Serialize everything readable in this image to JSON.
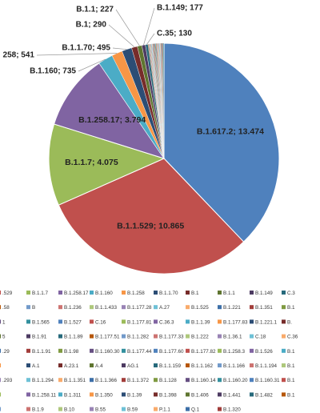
{
  "chart_data": {
    "type": "pie",
    "title": "",
    "labels": [
      "B.1.617.2",
      "B.1.1.529",
      "B.1.1.7",
      "B.1.258.17",
      "B.1.160",
      "B.1.258",
      "B.1.1.70",
      "B.1",
      "B.1.1",
      "B.1.149",
      "C.35"
    ],
    "values": [
      13474,
      10865,
      4075,
      3794,
      735,
      541,
      495,
      290,
      227,
      177,
      130
    ],
    "slice_colors": [
      "#4f81bd",
      "#c0504d",
      "#9bbb59",
      "#8064a2",
      "#4bacc6",
      "#f79646",
      "#2c4d75",
      "#772c2a",
      "#5f7530",
      "#4d3b62",
      "#276a7c"
    ],
    "data_labels": [
      "B.1.617.2; 13.474",
      "B.1.1.529; 10.865",
      "B.1.1.7; 4.075",
      "B.1.258.17; 3.794",
      "B.1.160; 735",
      "258; 541",
      "B.1.1.70; 495",
      "B.1; 290",
      "B.1.1; 227",
      "B.1.149; 177",
      "C.35; 130"
    ],
    "minor_slice_colors": [
      "#b65708",
      "#729aca",
      "#cd7371",
      "#aec87c",
      "#9983b5",
      "#6ec1d6",
      "#f9ab6b",
      "#3d6fa8",
      "#a23d3a",
      "#7f9a41",
      "#664f82",
      "#33909e"
    ],
    "legend_placement": "bottom",
    "legend_rows": [
      [
        {
          "label": ".529",
          "color": "#c0504d"
        },
        {
          "label": "B.1.1.7",
          "color": "#9bbb59"
        },
        {
          "label": "B.1.258.17",
          "color": "#8064a2"
        },
        {
          "label": "B.1.160",
          "color": "#4bacc6"
        },
        {
          "label": "B.1.258",
          "color": "#f79646"
        },
        {
          "label": "B.1.1.70",
          "color": "#2c4d75"
        },
        {
          "label": "B.1",
          "color": "#772c2a"
        },
        {
          "label": "B.1.1",
          "color": "#5f7530"
        },
        {
          "label": "B.1.149",
          "color": "#4d3b62"
        },
        {
          "label": "C.3",
          "color": "#276a7c"
        }
      ],
      [
        {
          "label": ".58",
          "color": "#b65708"
        },
        {
          "label": "B",
          "color": "#729aca"
        },
        {
          "label": "B.1.236",
          "color": "#cd7371"
        },
        {
          "label": "B.1.1.433",
          "color": "#aec87c"
        },
        {
          "label": "B.1.177.28",
          "color": "#9983b5"
        },
        {
          "label": "A.27",
          "color": "#6ec1d6"
        },
        {
          "label": "B.1.525",
          "color": "#f9ab6b"
        },
        {
          "label": "B.1.221",
          "color": "#3d6fa8"
        },
        {
          "label": "B.1.351",
          "color": "#a23d3a"
        },
        {
          "label": "B.1",
          "color": "#7f9a41"
        }
      ],
      [
        {
          "label": "1",
          "color": "#664f82"
        },
        {
          "label": "B.1.565",
          "color": "#33909e"
        },
        {
          "label": "B.1.527",
          "color": "#4f81bd"
        },
        {
          "label": "C.16",
          "color": "#c0504d"
        },
        {
          "label": "B.1.177.81",
          "color": "#9bbb59"
        },
        {
          "label": "C.36.3",
          "color": "#8064a2"
        },
        {
          "label": "B.1.1.39",
          "color": "#4bacc6"
        },
        {
          "label": "B.1.177.83",
          "color": "#f79646"
        },
        {
          "label": "B.1.221.1",
          "color": "#2c4d75"
        },
        {
          "label": "B.",
          "color": "#772c2a"
        }
      ],
      [
        {
          "label": "5",
          "color": "#5f7530"
        },
        {
          "label": "B.1.91",
          "color": "#4d3b62"
        },
        {
          "label": "B.1.1.89",
          "color": "#276a7c"
        },
        {
          "label": "B.1.177.51",
          "color": "#b65708"
        },
        {
          "label": "B.1.1.282",
          "color": "#729aca"
        },
        {
          "label": "B.1.177.33",
          "color": "#cd7371"
        },
        {
          "label": "B.1.222",
          "color": "#aec87c"
        },
        {
          "label": "B.1.36.1",
          "color": "#9983b5"
        },
        {
          "label": "C.18",
          "color": "#6ec1d6"
        },
        {
          "label": "C.36",
          "color": "#f9ab6b"
        }
      ],
      [
        {
          "label": ".29",
          "color": "#3d6fa8"
        },
        {
          "label": "B.1.1.91",
          "color": "#a23d3a"
        },
        {
          "label": "B.1.98",
          "color": "#7f9a41"
        },
        {
          "label": "B.1.160.30",
          "color": "#664f82"
        },
        {
          "label": "B.1.177.44",
          "color": "#33909e"
        },
        {
          "label": "B.1.177.60",
          "color": "#4f81bd"
        },
        {
          "label": "B.1.177.82",
          "color": "#c0504d"
        },
        {
          "label": "B.1.258.3",
          "color": "#9bbb59"
        },
        {
          "label": "B.1.526",
          "color": "#8064a2"
        },
        {
          "label": "B.1",
          "color": "#4bacc6"
        }
      ],
      [
        {
          "label": "",
          "color": "#f79646"
        },
        {
          "label": "A.1",
          "color": "#2c4d75"
        },
        {
          "label": "A.23.1",
          "color": "#772c2a"
        },
        {
          "label": "A.4",
          "color": "#5f7530"
        },
        {
          "label": "AG.1",
          "color": "#4d3b62"
        },
        {
          "label": "B.1.1.159",
          "color": "#276a7c"
        },
        {
          "label": "B.1.1.162",
          "color": "#b65708"
        },
        {
          "label": "B.1.1.166",
          "color": "#729aca"
        },
        {
          "label": "B.1.1.194",
          "color": "#cd7371"
        },
        {
          "label": "B.1",
          "color": "#aec87c"
        }
      ],
      [
        {
          "label": ".293",
          "color": "#9983b5"
        },
        {
          "label": "B.1.1.294",
          "color": "#6ec1d6"
        },
        {
          "label": "B.1.1.351",
          "color": "#f9ab6b"
        },
        {
          "label": "B.1.1.366",
          "color": "#3d6fa8"
        },
        {
          "label": "B.1.1.372",
          "color": "#a23d3a"
        },
        {
          "label": "B.1.128",
          "color": "#7f9a41"
        },
        {
          "label": "B.1.160.14",
          "color": "#664f82"
        },
        {
          "label": "B.1.160.20",
          "color": "#33909e"
        },
        {
          "label": "B.1.160.31",
          "color": "#4f81bd"
        },
        {
          "label": "B.1",
          "color": "#c0504d"
        }
      ],
      [
        {
          "label": "",
          "color": "#9bbb59"
        },
        {
          "label": "B.1.258.11",
          "color": "#8064a2"
        },
        {
          "label": "B.1.311",
          "color": "#4bacc6"
        },
        {
          "label": "B.1.350",
          "color": "#f79646"
        },
        {
          "label": "B.1.39",
          "color": "#2c4d75"
        },
        {
          "label": "B.1.398",
          "color": "#772c2a"
        },
        {
          "label": "B.1.406",
          "color": "#5f7530"
        },
        {
          "label": "B.1.441",
          "color": "#4d3b62"
        },
        {
          "label": "B.1.482",
          "color": "#276a7c"
        },
        {
          "label": "B.1",
          "color": "#b65708"
        }
      ],
      [
        {
          "label": "",
          "color": "#729aca"
        },
        {
          "label": "B.1.9",
          "color": "#cd7371"
        },
        {
          "label": "B.10",
          "color": "#aec87c"
        },
        {
          "label": "B.55",
          "color": "#9983b5"
        },
        {
          "label": "B.59",
          "color": "#6ec1d6"
        },
        {
          "label": "P.1.1",
          "color": "#f9ab6b"
        },
        {
          "label": "Q.1",
          "color": "#3d6fa8"
        },
        {
          "label": "B.1.320",
          "color": "#a23d3a"
        }
      ]
    ]
  }
}
